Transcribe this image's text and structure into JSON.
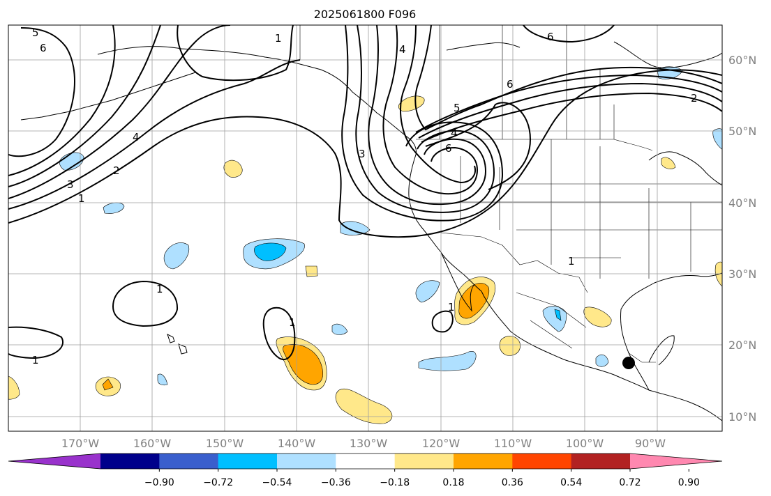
{
  "title": "2025061800 F096",
  "map": {
    "lon_ticks": [
      "170°W",
      "160°W",
      "150°W",
      "140°W",
      "130°W",
      "120°W",
      "110°W",
      "100°W",
      "90°W"
    ],
    "lat_ticks": [
      "60°N",
      "50°N",
      "40°N",
      "30°N",
      "20°N",
      "10°N"
    ],
    "contour_labels": [
      "5",
      "6",
      "1",
      "6",
      "4",
      "6",
      "5",
      "4",
      "2",
      "6",
      "4",
      "3",
      "2",
      "1",
      "3",
      "1",
      "1",
      "1",
      "1",
      "1"
    ],
    "marker": "filled-black-circle"
  },
  "colorbar": {
    "ticks": [
      "−0.90",
      "−0.72",
      "−0.54",
      "−0.36",
      "−0.18",
      "0.18",
      "0.36",
      "0.54",
      "0.72",
      "0.90"
    ],
    "colors": [
      "#9932cc",
      "#00008b",
      "#3a5fcd",
      "#00bfff",
      "#afe0ff",
      "#ffffff",
      "#ffe88a",
      "#ffa500",
      "#ff4500",
      "#b22222",
      "#ff88b0"
    ]
  }
}
